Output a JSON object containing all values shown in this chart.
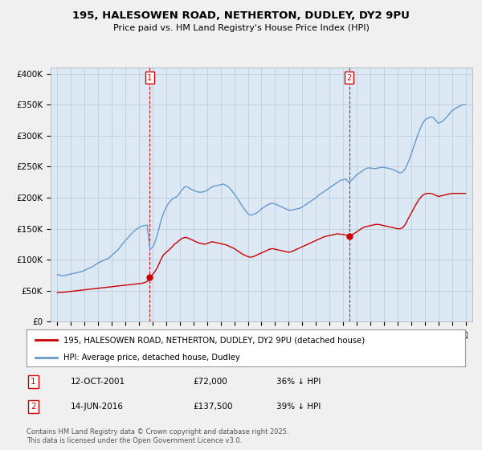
{
  "title": "195, HALESOWEN ROAD, NETHERTON, DUDLEY, DY2 9PU",
  "subtitle": "Price paid vs. HM Land Registry's House Price Index (HPI)",
  "bg_color": "#f0f0f0",
  "plot_bg_color": "#dce9f5",
  "red_line_color": "#cc0000",
  "blue_line_color": "#6699cc",
  "vline_color": "#cc0000",
  "ylabel_ticks": [
    "£0",
    "£50K",
    "£100K",
    "£150K",
    "£200K",
    "£250K",
    "£300K",
    "£350K",
    "£400K"
  ],
  "ytick_values": [
    0,
    50000,
    100000,
    150000,
    200000,
    250000,
    300000,
    350000,
    400000
  ],
  "ylim": [
    0,
    410000
  ],
  "xlim_start": 1994.5,
  "xlim_end": 2025.5,
  "purchase1_x": 2001.79,
  "purchase1_y": 72000,
  "purchase1_label": "1",
  "purchase2_x": 2016.45,
  "purchase2_y": 137500,
  "purchase2_label": "2",
  "legend_red_label": "195, HALESOWEN ROAD, NETHERTON, DUDLEY, DY2 9PU (detached house)",
  "legend_blue_label": "HPI: Average price, detached house, Dudley",
  "annotation1_date": "12-OCT-2001",
  "annotation1_price": "£72,000",
  "annotation1_hpi": "36% ↓ HPI",
  "annotation2_date": "14-JUN-2016",
  "annotation2_price": "£137,500",
  "annotation2_hpi": "39% ↓ HPI",
  "footer": "Contains HM Land Registry data © Crown copyright and database right 2025.\nThis data is licensed under the Open Government Licence v3.0.",
  "hpi_x": [
    1995.0,
    1995.2,
    1995.4,
    1995.6,
    1995.8,
    1996.0,
    1996.2,
    1996.4,
    1996.6,
    1996.8,
    1997.0,
    1997.2,
    1997.4,
    1997.6,
    1997.8,
    1998.0,
    1998.2,
    1998.4,
    1998.6,
    1998.8,
    1999.0,
    1999.2,
    1999.4,
    1999.6,
    1999.8,
    2000.0,
    2000.2,
    2000.4,
    2000.6,
    2000.8,
    2001.0,
    2001.2,
    2001.4,
    2001.6,
    2001.8,
    2002.0,
    2002.2,
    2002.4,
    2002.6,
    2002.8,
    2003.0,
    2003.2,
    2003.4,
    2003.6,
    2003.8,
    2004.0,
    2004.2,
    2004.4,
    2004.6,
    2004.8,
    2005.0,
    2005.2,
    2005.4,
    2005.6,
    2005.8,
    2006.0,
    2006.2,
    2006.4,
    2006.6,
    2006.8,
    2007.0,
    2007.2,
    2007.4,
    2007.6,
    2007.8,
    2008.0,
    2008.2,
    2008.4,
    2008.6,
    2008.8,
    2009.0,
    2009.2,
    2009.4,
    2009.6,
    2009.8,
    2010.0,
    2010.2,
    2010.4,
    2010.6,
    2010.8,
    2011.0,
    2011.2,
    2011.4,
    2011.6,
    2011.8,
    2012.0,
    2012.2,
    2012.4,
    2012.6,
    2012.8,
    2013.0,
    2013.2,
    2013.4,
    2013.6,
    2013.8,
    2014.0,
    2014.2,
    2014.4,
    2014.6,
    2014.8,
    2015.0,
    2015.2,
    2015.4,
    2015.6,
    2015.8,
    2016.0,
    2016.2,
    2016.4,
    2016.6,
    2016.8,
    2017.0,
    2017.2,
    2017.4,
    2017.6,
    2017.8,
    2018.0,
    2018.2,
    2018.4,
    2018.6,
    2018.8,
    2019.0,
    2019.2,
    2019.4,
    2019.6,
    2019.8,
    2020.0,
    2020.2,
    2020.4,
    2020.6,
    2020.8,
    2021.0,
    2021.2,
    2021.4,
    2021.6,
    2021.8,
    2022.0,
    2022.2,
    2022.4,
    2022.6,
    2022.8,
    2023.0,
    2023.2,
    2023.4,
    2023.6,
    2023.8,
    2024.0,
    2024.2,
    2024.4,
    2024.6,
    2024.8,
    2025.0
  ],
  "hpi_y": [
    76000,
    75000,
    74000,
    75000,
    76000,
    77000,
    78000,
    79000,
    80000,
    81000,
    83000,
    85000,
    87000,
    89000,
    92000,
    95000,
    97000,
    99000,
    101000,
    103000,
    107000,
    111000,
    115000,
    120000,
    126000,
    131000,
    136000,
    141000,
    145000,
    149000,
    152000,
    154000,
    155000,
    156000,
    117000,
    120000,
    130000,
    145000,
    162000,
    175000,
    185000,
    192000,
    197000,
    200000,
    202000,
    208000,
    214000,
    218000,
    217000,
    214000,
    212000,
    210000,
    209000,
    209000,
    210000,
    212000,
    215000,
    218000,
    219000,
    220000,
    221000,
    222000,
    220000,
    217000,
    212000,
    206000,
    200000,
    193000,
    186000,
    180000,
    174000,
    172000,
    173000,
    175000,
    178000,
    182000,
    185000,
    188000,
    190000,
    191000,
    190000,
    188000,
    186000,
    184000,
    182000,
    180000,
    180000,
    181000,
    182000,
    183000,
    185000,
    188000,
    191000,
    194000,
    197000,
    200000,
    204000,
    207000,
    210000,
    213000,
    216000,
    219000,
    222000,
    225000,
    228000,
    229000,
    230000,
    225000,
    228000,
    232000,
    237000,
    240000,
    243000,
    246000,
    248000,
    248000,
    247000,
    247000,
    248000,
    249000,
    249000,
    248000,
    247000,
    246000,
    244000,
    242000,
    240000,
    242000,
    248000,
    258000,
    270000,
    283000,
    296000,
    308000,
    318000,
    325000,
    328000,
    330000,
    330000,
    325000,
    320000,
    322000,
    325000,
    330000,
    335000,
    340000,
    343000,
    346000,
    348000,
    350000,
    350000
  ],
  "red_x": [
    1995.0,
    1995.2,
    1995.4,
    1995.6,
    1995.8,
    1996.0,
    1996.2,
    1996.4,
    1996.6,
    1996.8,
    1997.0,
    1997.2,
    1997.4,
    1997.6,
    1997.8,
    1998.0,
    1998.2,
    1998.4,
    1998.6,
    1998.8,
    1999.0,
    1999.2,
    1999.4,
    1999.6,
    1999.8,
    2000.0,
    2000.2,
    2000.4,
    2000.6,
    2000.8,
    2001.0,
    2001.2,
    2001.4,
    2001.6,
    2001.79,
    2002.0,
    2002.2,
    2002.4,
    2002.6,
    2002.8,
    2003.0,
    2003.2,
    2003.4,
    2003.6,
    2003.8,
    2004.0,
    2004.2,
    2004.4,
    2004.6,
    2004.8,
    2005.0,
    2005.2,
    2005.4,
    2005.6,
    2005.8,
    2006.0,
    2006.2,
    2006.4,
    2006.6,
    2006.8,
    2007.0,
    2007.2,
    2007.4,
    2007.6,
    2007.8,
    2008.0,
    2008.2,
    2008.4,
    2008.6,
    2008.8,
    2009.0,
    2009.2,
    2009.4,
    2009.6,
    2009.8,
    2010.0,
    2010.2,
    2010.4,
    2010.6,
    2010.8,
    2011.0,
    2011.2,
    2011.4,
    2011.6,
    2011.8,
    2012.0,
    2012.2,
    2012.4,
    2012.6,
    2012.8,
    2013.0,
    2013.2,
    2013.4,
    2013.6,
    2013.8,
    2014.0,
    2014.2,
    2014.4,
    2014.6,
    2014.8,
    2015.0,
    2015.2,
    2015.4,
    2015.6,
    2015.8,
    2016.0,
    2016.2,
    2016.45,
    2016.6,
    2016.8,
    2017.0,
    2017.2,
    2017.4,
    2017.6,
    2017.8,
    2018.0,
    2018.2,
    2018.4,
    2018.6,
    2018.8,
    2019.0,
    2019.2,
    2019.4,
    2019.6,
    2019.8,
    2020.0,
    2020.2,
    2020.4,
    2020.6,
    2020.8,
    2021.0,
    2021.2,
    2021.4,
    2021.6,
    2021.8,
    2022.0,
    2022.2,
    2022.4,
    2022.6,
    2022.8,
    2023.0,
    2023.2,
    2023.4,
    2023.6,
    2023.8,
    2024.0,
    2024.2,
    2024.4,
    2024.6,
    2024.8,
    2025.0
  ],
  "red_y": [
    47000,
    47500,
    47500,
    48000,
    48500,
    49000,
    49500,
    50000,
    50500,
    51000,
    51500,
    52000,
    52500,
    53000,
    53500,
    54000,
    54500,
    55000,
    55500,
    56000,
    56500,
    57000,
    57500,
    58000,
    58500,
    59000,
    59500,
    60000,
    60500,
    61000,
    61500,
    62000,
    63000,
    65000,
    72000,
    76000,
    82000,
    90000,
    100000,
    108000,
    112000,
    116000,
    120000,
    125000,
    128000,
    132000,
    135000,
    136000,
    135000,
    133000,
    131000,
    129000,
    127000,
    126000,
    125000,
    126000,
    128000,
    129000,
    128000,
    127000,
    126000,
    125000,
    124000,
    122000,
    120000,
    118000,
    115000,
    112000,
    109000,
    107000,
    105000,
    104000,
    105000,
    107000,
    109000,
    111000,
    113000,
    115000,
    117000,
    118000,
    117000,
    116000,
    115000,
    114000,
    113000,
    112000,
    113000,
    115000,
    117000,
    119000,
    121000,
    123000,
    125000,
    127000,
    129000,
    131000,
    133000,
    135000,
    137000,
    138000,
    139000,
    140000,
    141000,
    142000,
    141000,
    141000,
    140000,
    137500,
    140000,
    142000,
    145000,
    148000,
    151000,
    153000,
    154000,
    155000,
    156000,
    157000,
    157000,
    156000,
    155000,
    154000,
    153000,
    152000,
    151000,
    150000,
    150000,
    152000,
    158000,
    167000,
    175000,
    183000,
    191000,
    198000,
    203000,
    206000,
    207000,
    207000,
    206000,
    204000,
    202000,
    203000,
    204000,
    205000,
    206000,
    207000,
    207000,
    207000,
    207000,
    207000,
    207000
  ]
}
